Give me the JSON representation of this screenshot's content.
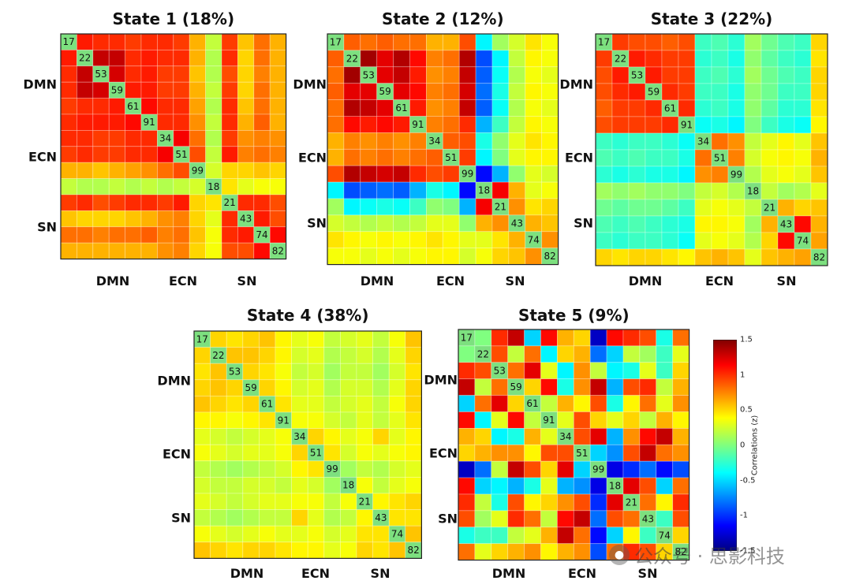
{
  "chart_data": {
    "type": "heatmap",
    "networks": [
      "DMN",
      "ECN",
      "SN"
    ],
    "node_labels": [
      "17",
      "22",
      "53",
      "59",
      "61",
      "91",
      "34",
      "51",
      "99",
      "18",
      "21",
      "43",
      "74",
      "82"
    ],
    "group_sizes": [
      6,
      3,
      5
    ],
    "colorbar": {
      "label": "Correlations (z)",
      "range": [
        -1.5,
        1.5
      ],
      "ticks": [
        "1.5",
        "1",
        "0.5",
        "0",
        "-0.5",
        "-1",
        "-1.5"
      ]
    },
    "states": [
      {
        "title": "State 1 (18%)",
        "matrix": [
          [
            null,
            1.05,
            1.0,
            1.0,
            0.95,
            1.0,
            1.0,
            0.95,
            0.6,
            0.2,
            0.95,
            0.55,
            0.8,
            0.6
          ],
          [
            1.05,
            null,
            1.3,
            1.3,
            1.0,
            1.05,
            1.0,
            1.0,
            0.6,
            0.15,
            1.0,
            0.5,
            0.8,
            0.6
          ],
          [
            1.0,
            1.3,
            null,
            1.25,
            1.0,
            1.05,
            0.95,
            0.95,
            0.55,
            0.15,
            0.9,
            0.5,
            0.75,
            0.6
          ],
          [
            1.0,
            1.3,
            1.25,
            null,
            1.05,
            1.05,
            0.95,
            0.95,
            0.6,
            0.2,
            0.95,
            0.5,
            0.8,
            0.6
          ],
          [
            0.95,
            1.0,
            1.0,
            1.05,
            null,
            1.1,
            1.0,
            1.0,
            0.65,
            0.15,
            1.0,
            0.55,
            0.8,
            0.6
          ],
          [
            1.0,
            1.05,
            1.05,
            1.05,
            1.1,
            null,
            1.0,
            1.0,
            0.7,
            0.2,
            1.0,
            0.6,
            0.85,
            0.6
          ],
          [
            1.0,
            1.0,
            0.95,
            0.95,
            1.0,
            1.0,
            null,
            1.15,
            0.8,
            0.15,
            0.95,
            0.7,
            0.75,
            0.7
          ],
          [
            0.95,
            1.0,
            0.95,
            0.95,
            1.0,
            1.0,
            1.15,
            null,
            0.9,
            0.2,
            1.05,
            0.75,
            0.8,
            0.75
          ],
          [
            0.6,
            0.6,
            0.55,
            0.6,
            0.65,
            0.7,
            0.8,
            0.9,
            null,
            0.25,
            0.5,
            0.5,
            0.55,
            0.5
          ],
          [
            0.2,
            0.15,
            0.15,
            0.2,
            0.15,
            0.2,
            0.15,
            0.2,
            0.25,
            null,
            0.45,
            0.3,
            0.35,
            0.35
          ],
          [
            0.95,
            1.0,
            0.9,
            0.95,
            1.0,
            1.0,
            0.95,
            1.05,
            0.5,
            0.45,
            null,
            1.0,
            1.0,
            0.9
          ],
          [
            0.55,
            0.5,
            0.5,
            0.5,
            0.55,
            0.6,
            0.7,
            0.75,
            0.5,
            0.3,
            1.0,
            null,
            1.05,
            0.9
          ],
          [
            0.8,
            0.8,
            0.75,
            0.8,
            0.8,
            0.85,
            0.75,
            0.8,
            0.55,
            0.35,
            1.0,
            1.05,
            null,
            1.1
          ],
          [
            0.6,
            0.6,
            0.6,
            0.6,
            0.6,
            0.6,
            0.7,
            0.75,
            0.5,
            0.35,
            0.9,
            0.9,
            1.1,
            null
          ]
        ]
      },
      {
        "title": "State 2 (12%)",
        "matrix": [
          [
            null,
            0.85,
            0.8,
            0.85,
            0.8,
            0.8,
            0.6,
            0.6,
            0.9,
            -0.4,
            0.1,
            0.25,
            0.45,
            0.35
          ],
          [
            0.85,
            null,
            1.4,
            1.2,
            1.35,
            1.1,
            0.75,
            0.8,
            1.35,
            -0.9,
            -0.4,
            0.2,
            0.4,
            0.35
          ],
          [
            0.8,
            1.4,
            null,
            1.2,
            1.3,
            1.05,
            0.7,
            0.75,
            1.3,
            -0.85,
            -0.35,
            0.15,
            0.35,
            0.3
          ],
          [
            0.85,
            1.2,
            1.2,
            null,
            1.2,
            1.1,
            0.75,
            0.8,
            1.25,
            -0.8,
            -0.3,
            0.2,
            0.4,
            0.35
          ],
          [
            0.8,
            1.35,
            1.3,
            1.2,
            null,
            1.05,
            0.7,
            0.75,
            1.3,
            -0.85,
            -0.35,
            0.15,
            0.35,
            0.3
          ],
          [
            0.8,
            1.1,
            1.05,
            1.1,
            1.05,
            null,
            0.75,
            0.8,
            1.0,
            -0.6,
            -0.2,
            0.2,
            0.4,
            0.35
          ],
          [
            0.6,
            0.75,
            0.7,
            0.75,
            0.7,
            0.75,
            null,
            0.85,
            0.9,
            -0.3,
            0.05,
            0.3,
            0.45,
            0.4
          ],
          [
            0.6,
            0.8,
            0.75,
            0.8,
            0.75,
            0.8,
            0.85,
            null,
            0.95,
            -0.4,
            0.0,
            0.3,
            0.4,
            0.4
          ],
          [
            0.9,
            1.35,
            1.3,
            1.25,
            1.3,
            1.0,
            0.9,
            0.95,
            null,
            -1.1,
            -0.6,
            0.05,
            0.3,
            0.25
          ],
          [
            -0.4,
            -0.9,
            -0.85,
            -0.8,
            -0.85,
            -0.6,
            -0.3,
            -0.4,
            -1.1,
            null,
            1.15,
            0.6,
            0.3,
            0.35
          ],
          [
            0.1,
            -0.4,
            -0.35,
            -0.3,
            -0.35,
            -0.2,
            0.05,
            0.0,
            -0.6,
            1.15,
            null,
            0.7,
            0.45,
            0.5
          ],
          [
            0.25,
            0.2,
            0.15,
            0.2,
            0.15,
            0.2,
            0.3,
            0.3,
            0.05,
            0.6,
            0.7,
            null,
            0.6,
            0.55
          ],
          [
            0.45,
            0.4,
            0.35,
            0.4,
            0.35,
            0.4,
            0.45,
            0.4,
            0.3,
            0.3,
            0.45,
            0.6,
            null,
            0.7
          ],
          [
            0.35,
            0.35,
            0.3,
            0.35,
            0.3,
            0.35,
            0.4,
            0.4,
            0.25,
            0.35,
            0.5,
            0.55,
            0.7,
            null
          ]
        ]
      },
      {
        "title": "State 3 (22%)",
        "matrix": [
          [
            null,
            0.95,
            0.9,
            0.9,
            0.85,
            0.9,
            -0.2,
            -0.15,
            -0.25,
            0.1,
            -0.05,
            -0.15,
            -0.2,
            0.5
          ],
          [
            0.95,
            null,
            1.05,
            1.0,
            0.95,
            0.95,
            -0.25,
            -0.2,
            -0.3,
            0.05,
            -0.1,
            -0.2,
            -0.25,
            0.45
          ],
          [
            0.9,
            1.05,
            null,
            1.05,
            0.95,
            0.95,
            -0.2,
            -0.15,
            -0.25,
            0.1,
            -0.05,
            -0.15,
            -0.2,
            0.5
          ],
          [
            0.9,
            1.0,
            1.05,
            null,
            1.0,
            0.95,
            -0.2,
            -0.2,
            -0.3,
            0.05,
            -0.05,
            -0.2,
            -0.2,
            0.5
          ],
          [
            0.85,
            0.95,
            0.95,
            1.0,
            null,
            1.0,
            -0.25,
            -0.2,
            -0.3,
            0.05,
            -0.1,
            -0.25,
            -0.25,
            0.45
          ],
          [
            0.9,
            0.95,
            0.95,
            0.95,
            1.0,
            null,
            -0.35,
            -0.3,
            -0.4,
            0.0,
            -0.2,
            -0.3,
            -0.35,
            0.4
          ],
          [
            -0.2,
            -0.25,
            -0.2,
            -0.2,
            -0.25,
            -0.35,
            null,
            0.8,
            0.7,
            0.2,
            0.3,
            0.4,
            0.3,
            0.55
          ],
          [
            -0.15,
            -0.2,
            -0.15,
            -0.2,
            -0.2,
            -0.3,
            0.8,
            null,
            0.75,
            0.25,
            0.35,
            0.4,
            0.35,
            0.6
          ],
          [
            -0.25,
            -0.3,
            -0.25,
            -0.3,
            -0.3,
            -0.4,
            0.7,
            0.75,
            null,
            0.15,
            0.3,
            0.35,
            0.3,
            0.55
          ],
          [
            0.1,
            0.05,
            0.1,
            0.05,
            0.05,
            0.0,
            0.2,
            0.25,
            0.15,
            null,
            0.2,
            0.1,
            0.15,
            0.3
          ],
          [
            -0.05,
            -0.1,
            -0.05,
            -0.05,
            -0.1,
            -0.2,
            0.3,
            0.35,
            0.3,
            0.2,
            null,
            0.6,
            0.5,
            0.55
          ],
          [
            -0.15,
            -0.2,
            -0.15,
            -0.2,
            -0.25,
            -0.3,
            0.4,
            0.4,
            0.35,
            0.1,
            0.6,
            null,
            1.1,
            0.6
          ],
          [
            -0.2,
            -0.25,
            -0.2,
            -0.2,
            -0.25,
            -0.35,
            0.3,
            0.35,
            0.3,
            0.15,
            0.5,
            1.1,
            null,
            0.65
          ],
          [
            0.5,
            0.45,
            0.5,
            0.5,
            0.45,
            0.4,
            0.55,
            0.6,
            0.55,
            0.3,
            0.55,
            0.6,
            0.65,
            null
          ]
        ]
      },
      {
        "title": "State 4 (38%)",
        "matrix": [
          [
            null,
            0.5,
            0.45,
            0.5,
            0.55,
            0.4,
            0.3,
            0.35,
            0.2,
            0.25,
            0.3,
            0.2,
            0.35,
            0.55
          ],
          [
            0.5,
            null,
            0.55,
            0.55,
            0.5,
            0.4,
            0.25,
            0.3,
            0.15,
            0.2,
            0.25,
            0.15,
            0.3,
            0.5
          ],
          [
            0.45,
            0.55,
            null,
            0.5,
            0.45,
            0.35,
            0.2,
            0.25,
            0.1,
            0.2,
            0.2,
            0.1,
            0.25,
            0.45
          ],
          [
            0.5,
            0.55,
            0.5,
            null,
            0.5,
            0.4,
            0.25,
            0.3,
            0.15,
            0.25,
            0.25,
            0.15,
            0.3,
            0.5
          ],
          [
            0.55,
            0.5,
            0.45,
            0.5,
            null,
            0.45,
            0.3,
            0.3,
            0.2,
            0.25,
            0.3,
            0.2,
            0.35,
            0.5
          ],
          [
            0.4,
            0.4,
            0.35,
            0.4,
            0.45,
            null,
            0.35,
            0.35,
            0.25,
            0.2,
            0.3,
            0.2,
            0.3,
            0.45
          ],
          [
            0.3,
            0.25,
            0.2,
            0.25,
            0.3,
            0.35,
            null,
            0.5,
            0.4,
            0.3,
            0.35,
            0.5,
            0.3,
            0.4
          ],
          [
            0.35,
            0.3,
            0.25,
            0.3,
            0.3,
            0.35,
            0.5,
            null,
            0.45,
            0.25,
            0.35,
            0.3,
            0.35,
            0.4
          ],
          [
            0.2,
            0.15,
            0.1,
            0.15,
            0.2,
            0.25,
            0.4,
            0.45,
            null,
            0.1,
            0.2,
            0.15,
            0.25,
            0.3
          ],
          [
            0.25,
            0.2,
            0.2,
            0.25,
            0.25,
            0.2,
            0.3,
            0.25,
            0.1,
            null,
            0.35,
            0.2,
            0.3,
            0.35
          ],
          [
            0.3,
            0.25,
            0.2,
            0.25,
            0.3,
            0.3,
            0.35,
            0.35,
            0.2,
            0.35,
            null,
            0.4,
            0.45,
            0.5
          ],
          [
            0.2,
            0.15,
            0.1,
            0.15,
            0.2,
            0.2,
            0.5,
            0.3,
            0.15,
            0.2,
            0.4,
            null,
            0.45,
            0.45
          ],
          [
            0.35,
            0.3,
            0.25,
            0.3,
            0.35,
            0.3,
            0.3,
            0.35,
            0.25,
            0.3,
            0.45,
            0.45,
            null,
            0.55
          ],
          [
            0.55,
            0.5,
            0.45,
            0.5,
            0.5,
            0.45,
            0.4,
            0.4,
            0.3,
            0.35,
            0.5,
            0.45,
            0.55,
            null
          ]
        ]
      },
      {
        "title": "State 5 (9%)",
        "matrix": [
          [
            null,
            0.0,
            1.0,
            1.3,
            -0.5,
            1.1,
            0.6,
            0.5,
            -1.3,
            1.1,
            1.0,
            0.9,
            -0.3,
            0.8
          ],
          [
            0.0,
            null,
            0.9,
            0.2,
            0.8,
            -0.4,
            0.5,
            0.6,
            -0.8,
            -0.5,
            0.2,
            0.1,
            -0.2,
            0.3
          ],
          [
            1.0,
            0.9,
            null,
            0.8,
            1.2,
            0.3,
            -0.4,
            0.7,
            0.2,
            -0.4,
            -0.3,
            0.3,
            -0.2,
            0.5
          ],
          [
            1.3,
            0.2,
            0.8,
            null,
            0.5,
            1.1,
            -0.3,
            0.7,
            1.3,
            -0.6,
            0.9,
            1.0,
            0.2,
            0.6
          ],
          [
            -0.5,
            0.8,
            1.2,
            0.5,
            null,
            0.2,
            0.6,
            0.4,
            0.9,
            -0.3,
            0.4,
            0.8,
            0.3,
            0.7
          ],
          [
            1.1,
            -0.4,
            0.3,
            1.1,
            0.2,
            null,
            0.3,
            0.9,
            0.5,
            0.3,
            0.5,
            0.2,
            0.6,
            0.4
          ],
          [
            0.6,
            0.5,
            -0.4,
            -0.3,
            0.6,
            0.3,
            null,
            0.9,
            1.2,
            -0.6,
            0.7,
            1.1,
            1.3,
            0.6
          ],
          [
            0.5,
            0.6,
            0.7,
            0.7,
            0.4,
            0.9,
            0.9,
            null,
            -0.5,
            -0.7,
            0.9,
            1.3,
            0.8,
            0.7
          ],
          [
            -1.3,
            -0.8,
            0.2,
            1.3,
            0.9,
            0.5,
            1.2,
            -0.5,
            null,
            -1.2,
            -1.0,
            -0.8,
            -1.1,
            -0.9
          ],
          [
            1.1,
            -0.5,
            -0.4,
            -0.6,
            -0.3,
            0.3,
            -0.6,
            -0.7,
            -1.2,
            null,
            1.2,
            0.9,
            -0.5,
            0.8
          ],
          [
            1.0,
            0.2,
            -0.3,
            0.9,
            0.4,
            0.5,
            0.7,
            0.9,
            -1.0,
            1.2,
            null,
            0.8,
            0.4,
            1.0
          ],
          [
            0.9,
            0.1,
            0.3,
            1.0,
            0.8,
            0.2,
            1.1,
            1.3,
            -0.8,
            0.9,
            0.8,
            null,
            -0.2,
            0.9
          ],
          [
            -0.3,
            -0.2,
            -0.2,
            0.2,
            0.3,
            0.6,
            1.3,
            0.8,
            -1.1,
            -0.5,
            0.4,
            -0.2,
            null,
            0.5
          ],
          [
            0.8,
            0.3,
            0.5,
            0.6,
            0.7,
            0.4,
            0.6,
            0.7,
            -0.9,
            0.8,
            1.0,
            0.9,
            0.5,
            null
          ]
        ]
      }
    ]
  },
  "watermark": {
    "icon": "wechat-icon",
    "text": "公众号 · 思影科技"
  }
}
